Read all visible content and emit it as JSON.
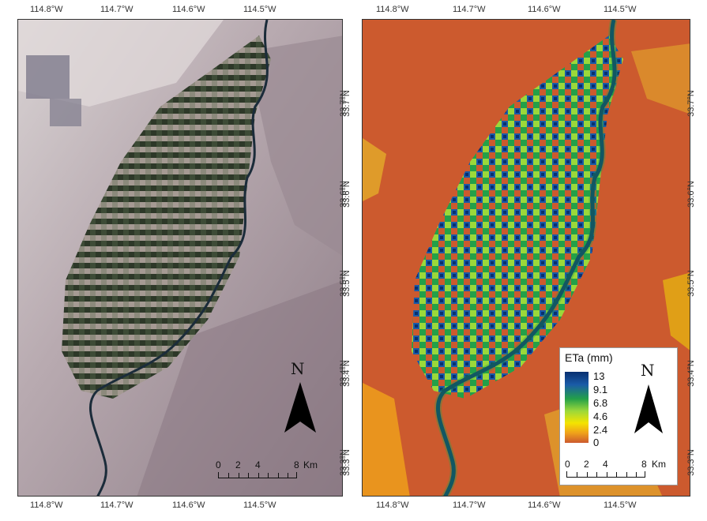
{
  "left_panel": {
    "top_ticks": [
      "114.8°W",
      "114.7°W",
      "114.6°W",
      "114.5°W"
    ],
    "bottom_ticks": [
      "114.8°W",
      "114.7°W",
      "114.6°W",
      "114.5°W"
    ],
    "right_ticks": [
      "33.7°N",
      "33.6°N",
      "33.5°N",
      "33.4°N",
      "33.3°N"
    ],
    "north_label": "N",
    "scale": {
      "labels": [
        "0",
        "2",
        "4",
        "8"
      ],
      "unit": "Km"
    }
  },
  "right_panel": {
    "top_ticks": [
      "114.8°W",
      "114.7°W",
      "114.6°W",
      "114.5°W"
    ],
    "bottom_ticks": [
      "114.8°W",
      "114.7°W",
      "114.6°W",
      "114.5°W"
    ],
    "left_ticks": [
      "33.7°N",
      "33.6°N",
      "33.5°N",
      "33.4°N",
      "33.3°N"
    ],
    "right_ticks": [
      "33.7°N",
      "33.6°N",
      "33.5°N",
      "33.4°N",
      "33.3°N"
    ],
    "north_label": "N",
    "legend": {
      "title": "ETa (mm)",
      "values": [
        "13",
        "9.1",
        "6.8",
        "4.6",
        "2.4",
        "0"
      ],
      "colors": [
        "#083070",
        "#23a049",
        "#9bd83a",
        "#f4e400",
        "#f0a21a",
        "#cc5a2e"
      ]
    },
    "scale": {
      "labels": [
        "0",
        "2",
        "4",
        "8"
      ],
      "unit": "Km"
    }
  },
  "colors": {
    "desert_bg": "#cc5a2e",
    "satellite_bg": "#b9afb2",
    "river": "#1b2c3a"
  }
}
